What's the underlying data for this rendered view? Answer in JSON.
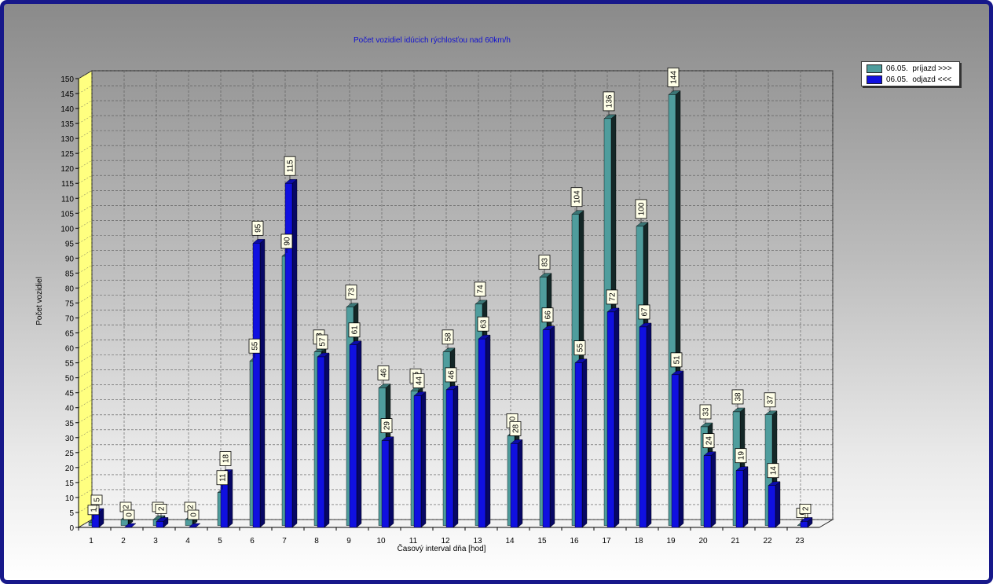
{
  "chart_data": {
    "type": "bar",
    "title": "Počet vozidiel idúcich rýchlosťou nad 60km/h",
    "xlabel": "Časový interval dňa [hod]",
    "ylabel": "Počet vozidiel",
    "ylim": [
      0,
      150
    ],
    "ytick_step": 5,
    "grid": true,
    "legend_position": "top-right",
    "categories": [
      "1",
      "2",
      "3",
      "4",
      "5",
      "6",
      "7",
      "8",
      "9",
      "10",
      "11",
      "12",
      "13",
      "14",
      "15",
      "16",
      "17",
      "18",
      "19",
      "20",
      "21",
      "22",
      "23"
    ],
    "series": [
      {
        "name": "06.05.  príjazd >>>",
        "color": "#4f9d9d",
        "values": [
          1,
          2,
          2,
          2,
          11,
          55,
          90,
          58,
          73,
          46,
          45,
          58,
          74,
          30,
          83,
          104,
          136,
          100,
          144,
          33,
          38,
          37,
          0
        ]
      },
      {
        "name": "06.05.  odjazd <<<",
        "color": "#1010e0",
        "values": [
          5,
          0,
          2,
          0,
          18,
          95,
          115,
          57,
          61,
          29,
          44,
          46,
          63,
          28,
          66,
          55,
          72,
          67,
          51,
          24,
          19,
          14,
          2
        ]
      }
    ]
  }
}
